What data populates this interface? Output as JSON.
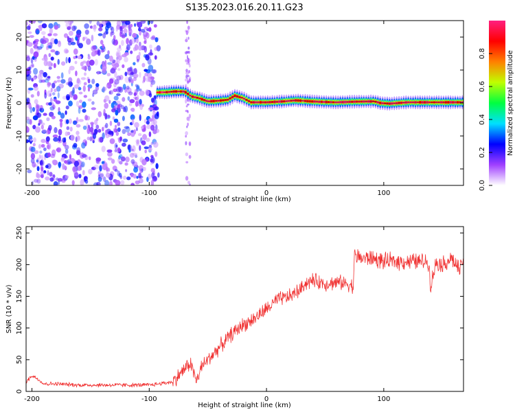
{
  "figure": {
    "title": "S135.2023.016.20.11.G23"
  },
  "chart_data": [
    {
      "type": "heatmap",
      "id": "spectrogram",
      "title": "S135.2023.016.20.11.G23",
      "xlabel": "Height of straight line (km)",
      "ylabel": "Frequency (Hz)",
      "xlim": [
        -205,
        168
      ],
      "ylim": [
        -25,
        25
      ],
      "x_ticks": [
        -200,
        -100,
        0,
        100
      ],
      "y_ticks": [
        -20,
        -10,
        0,
        10,
        20
      ],
      "colorbar": {
        "label": "Normalized spectral amplitude",
        "range": [
          0,
          1
        ],
        "ticks": [
          0.0,
          0.2,
          0.4,
          0.6,
          0.8
        ],
        "tick_labels": [
          "0.0",
          "0.2",
          "0.4",
          "0.6",
          "0.8"
        ],
        "colormap": [
          "#ffffff",
          "#a040ff",
          "#0000ff",
          "#00e0ff",
          "#00ff40",
          "#c0ff00",
          "#ff8000",
          "#ff0000",
          "#ff2080"
        ]
      },
      "noise_region": {
        "x_range": [
          -205,
          -92
        ],
        "y_range": [
          -25,
          25
        ],
        "amplitude": 0.25
      },
      "noise_column": {
        "x": -67,
        "y_range": [
          -25,
          25
        ],
        "amplitude": 0.1
      },
      "ridge": [
        {
          "x": -93,
          "y": 3.2
        },
        {
          "x": -85,
          "y": 3.3
        },
        {
          "x": -78,
          "y": 3.5
        },
        {
          "x": -70,
          "y": 3.5
        },
        {
          "x": -64,
          "y": 2.0
        },
        {
          "x": -58,
          "y": 1.5
        },
        {
          "x": -50,
          "y": 0.5
        },
        {
          "x": -40,
          "y": 0.7
        },
        {
          "x": -33,
          "y": 1.0
        },
        {
          "x": -27,
          "y": 2.2
        },
        {
          "x": -20,
          "y": 1.5
        },
        {
          "x": -13,
          "y": 0.2
        },
        {
          "x": 0,
          "y": 0.2
        },
        {
          "x": 15,
          "y": 0.5
        },
        {
          "x": 25,
          "y": 0.8
        },
        {
          "x": 38,
          "y": 0.5
        },
        {
          "x": 50,
          "y": 0.3
        },
        {
          "x": 60,
          "y": 0.2
        },
        {
          "x": 75,
          "y": 0.4
        },
        {
          "x": 92,
          "y": 0.5
        },
        {
          "x": 97,
          "y": 0.0
        },
        {
          "x": 105,
          "y": -0.2
        },
        {
          "x": 120,
          "y": 0.2
        },
        {
          "x": 168,
          "y": 0.2
        }
      ],
      "ridge_peak_amplitude": 1.0,
      "ridge_half_width_hz": 0.8
    },
    {
      "type": "line",
      "id": "snr",
      "xlabel": "Height of straight line (km)",
      "ylabel": "SNR (10 * v/v)",
      "xlim": [
        -205,
        168
      ],
      "ylim": [
        0,
        260
      ],
      "x_ticks": [
        -200,
        -100,
        0,
        100
      ],
      "y_ticks": [
        0,
        50,
        100,
        150,
        200,
        250
      ],
      "color": "#f03030",
      "series": [
        {
          "x": [
            -205,
            -200,
            -195,
            -190,
            -180,
            -160,
            -140,
            -120,
            -100,
            -80,
            -70,
            -65,
            -62,
            -60,
            -58,
            -55,
            -50,
            -45,
            -40,
            -30,
            -20,
            -10,
            0,
            10,
            20,
            30,
            32,
            40,
            50,
            60,
            70,
            74,
            75,
            80,
            90,
            100,
            110,
            120,
            130,
            138,
            140,
            145,
            150,
            158,
            165,
            168
          ],
          "y": [
            15,
            25,
            20,
            12,
            12,
            10,
            10,
            10,
            10,
            15,
            35,
            45,
            30,
            15,
            25,
            40,
            50,
            60,
            70,
            90,
            105,
            115,
            130,
            145,
            150,
            162,
            170,
            175,
            170,
            172,
            170,
            165,
            215,
            210,
            210,
            205,
            205,
            205,
            205,
            205,
            168,
            205,
            200,
            210,
            190,
            210
          ]
        }
      ]
    }
  ]
}
